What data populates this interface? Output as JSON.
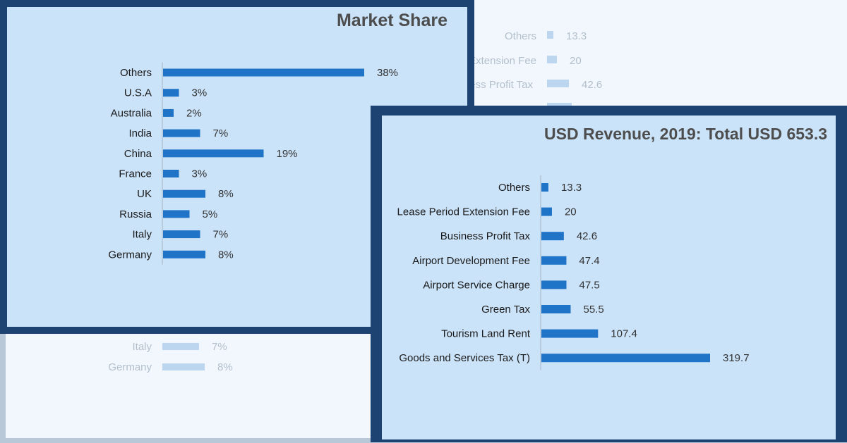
{
  "chart_data": [
    {
      "type": "bar",
      "orientation": "horizontal",
      "title": "Market Share",
      "categories": [
        "Others",
        "U.S.A",
        "Australia",
        "India",
        "China",
        "France",
        "UK",
        "Russia",
        "Italy",
        "Germany"
      ],
      "values": [
        38,
        3,
        2,
        7,
        19,
        3,
        8,
        5,
        7,
        8
      ],
      "value_labels": [
        "38%",
        "3%",
        "2%",
        "7%",
        "19%",
        "3%",
        "8%",
        "5%",
        "7%",
        "8%"
      ],
      "bar_color": "#1f74c8",
      "xlabel": "",
      "ylabel": "",
      "grid": false
    },
    {
      "type": "bar",
      "orientation": "horizontal",
      "title": "USD Revenue, 2019: Total USD 653.3",
      "categories": [
        "Others",
        "Lease Period Extension Fee",
        "Business Profit Tax",
        "Airport Development Fee",
        "Airport Service Charge",
        "Green Tax",
        "Tourism Land Rent",
        "Goods and Services Tax (T)"
      ],
      "values": [
        13.3,
        20,
        42.6,
        47.4,
        47.5,
        55.5,
        107.4,
        319.7
      ],
      "value_labels": [
        "13.3",
        "20",
        "42.6",
        "47.4",
        "47.5",
        "55.5",
        "107.4",
        "319.7"
      ],
      "bar_color": "#1f74c8",
      "xlabel": "",
      "ylabel": "",
      "grid": false
    }
  ],
  "ghost_colors": {
    "text": "#b3bfcb",
    "bar": "#bcd6f0"
  }
}
